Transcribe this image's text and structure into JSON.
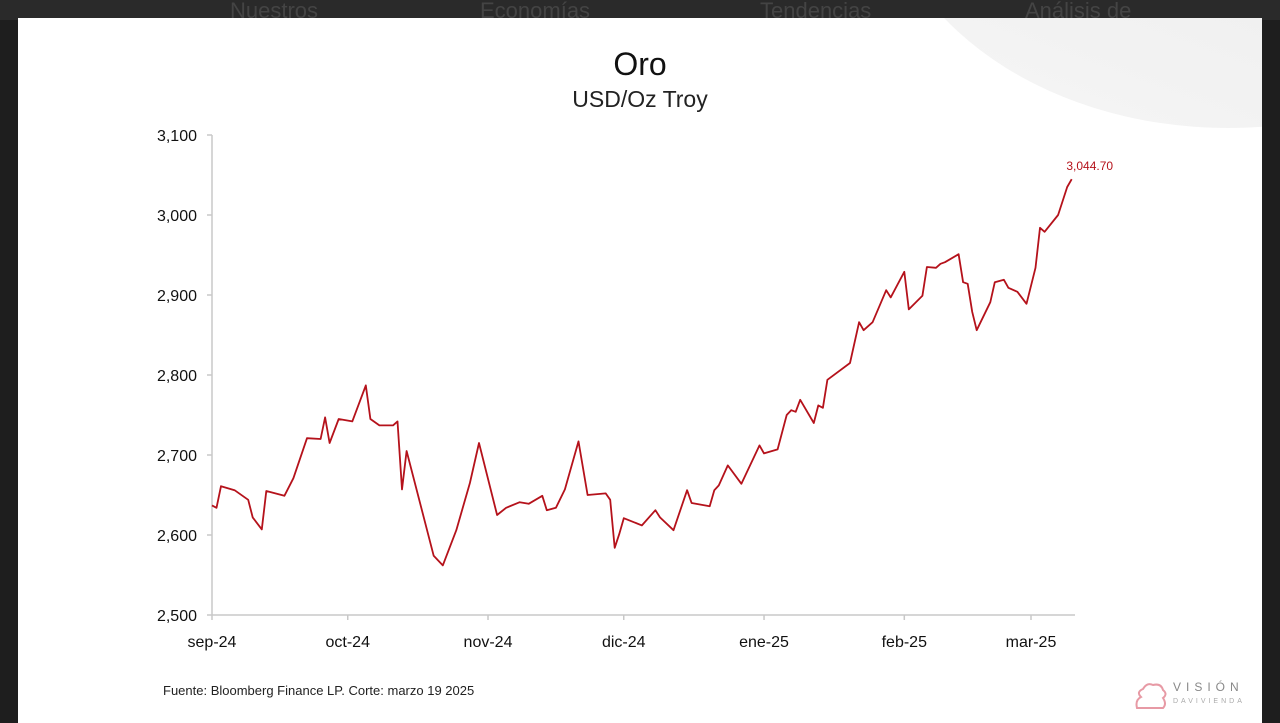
{
  "nav": {
    "items": [
      "Nuestros",
      "Economías",
      "Tendencias",
      "Análisis de"
    ]
  },
  "chart_data": {
    "type": "line",
    "title": "Oro",
    "subtitle": "USD/Oz Troy",
    "xlabel": "",
    "ylabel": "",
    "ylim": [
      2500,
      3100
    ],
    "yticks": [
      "2,500",
      "2,600",
      "2,700",
      "2,800",
      "2,900",
      "3,000",
      "3,100"
    ],
    "xticks": [
      {
        "date": "2024-09-01",
        "label": "sep-24"
      },
      {
        "date": "2024-10-01",
        "label": "oct-24"
      },
      {
        "date": "2024-11-01",
        "label": "nov-24"
      },
      {
        "date": "2024-12-01",
        "label": "dic-24"
      },
      {
        "date": "2025-01-01",
        "label": "ene-25"
      },
      {
        "date": "2025-02-01",
        "label": "feb-25"
      },
      {
        "date": "2025-03-01",
        "label": "mar-25"
      }
    ],
    "grid": false,
    "line_color": "#b5121b",
    "last_value_label": "3,044.70",
    "series": [
      {
        "points": [
          [
            "2024-09-01",
            2637
          ],
          [
            "2024-09-02",
            2634
          ],
          [
            "2024-09-03",
            2661
          ],
          [
            "2024-09-06",
            2656
          ],
          [
            "2024-09-09",
            2644
          ],
          [
            "2024-09-10",
            2622
          ],
          [
            "2024-09-12",
            2607
          ],
          [
            "2024-09-13",
            2655
          ],
          [
            "2024-09-17",
            2649
          ],
          [
            "2024-09-19",
            2671
          ],
          [
            "2024-09-22",
            2721
          ],
          [
            "2024-09-25",
            2720
          ],
          [
            "2024-09-26",
            2747
          ],
          [
            "2024-09-27",
            2715
          ],
          [
            "2024-09-29",
            2745
          ],
          [
            "2024-10-02",
            2742
          ],
          [
            "2024-10-04",
            2772
          ],
          [
            "2024-10-05",
            2787
          ],
          [
            "2024-10-06",
            2745
          ],
          [
            "2024-10-08",
            2737
          ],
          [
            "2024-10-11",
            2737
          ],
          [
            "2024-10-12",
            2742
          ],
          [
            "2024-10-13",
            2657
          ],
          [
            "2024-10-14",
            2705
          ],
          [
            "2024-10-20",
            2574
          ],
          [
            "2024-10-22",
            2562
          ],
          [
            "2024-10-25",
            2606
          ],
          [
            "2024-10-28",
            2665
          ],
          [
            "2024-10-30",
            2715
          ],
          [
            "2024-11-03",
            2625
          ],
          [
            "2024-11-05",
            2634
          ],
          [
            "2024-11-08",
            2641
          ],
          [
            "2024-11-10",
            2639
          ],
          [
            "2024-11-13",
            2649
          ],
          [
            "2024-11-14",
            2631
          ],
          [
            "2024-11-16",
            2634
          ],
          [
            "2024-11-18",
            2657
          ],
          [
            "2024-11-21",
            2717
          ],
          [
            "2024-11-23",
            2650
          ],
          [
            "2024-11-27",
            2652
          ],
          [
            "2024-11-28",
            2644
          ],
          [
            "2024-11-29",
            2584
          ],
          [
            "2024-11-30",
            2601
          ],
          [
            "2024-12-01",
            2621
          ],
          [
            "2024-12-05",
            2612
          ],
          [
            "2024-12-08",
            2631
          ],
          [
            "2024-12-09",
            2622
          ],
          [
            "2024-12-12",
            2606
          ],
          [
            "2024-12-15",
            2656
          ],
          [
            "2024-12-16",
            2640
          ],
          [
            "2024-12-20",
            2636
          ],
          [
            "2024-12-21",
            2656
          ],
          [
            "2024-12-22",
            2662
          ],
          [
            "2024-12-24",
            2687
          ],
          [
            "2024-12-27",
            2664
          ],
          [
            "2024-12-31",
            2712
          ],
          [
            "2025-01-01",
            2702
          ],
          [
            "2025-01-04",
            2707
          ],
          [
            "2025-01-06",
            2750
          ],
          [
            "2025-01-07",
            2756
          ],
          [
            "2025-01-08",
            2754
          ],
          [
            "2025-01-09",
            2769
          ],
          [
            "2025-01-12",
            2740
          ],
          [
            "2025-01-13",
            2762
          ],
          [
            "2025-01-14",
            2759
          ],
          [
            "2025-01-15",
            2794
          ],
          [
            "2025-01-20",
            2815
          ],
          [
            "2025-01-22",
            2866
          ],
          [
            "2025-01-23",
            2856
          ],
          [
            "2025-01-25",
            2866
          ],
          [
            "2025-01-28",
            2906
          ],
          [
            "2025-01-29",
            2897
          ],
          [
            "2025-02-01",
            2929
          ],
          [
            "2025-02-02",
            2882
          ],
          [
            "2025-02-05",
            2899
          ],
          [
            "2025-02-06",
            2935
          ],
          [
            "2025-02-08",
            2934
          ],
          [
            "2025-02-09",
            2939
          ],
          [
            "2025-02-10",
            2941
          ],
          [
            "2025-02-13",
            2951
          ],
          [
            "2025-02-14",
            2916
          ],
          [
            "2025-02-15",
            2914
          ],
          [
            "2025-02-16",
            2879
          ],
          [
            "2025-02-17",
            2856
          ],
          [
            "2025-02-20",
            2891
          ],
          [
            "2025-02-21",
            2916
          ],
          [
            "2025-02-23",
            2919
          ],
          [
            "2025-02-24",
            2909
          ],
          [
            "2025-02-26",
            2904
          ],
          [
            "2025-02-28",
            2889
          ],
          [
            "2025-03-02",
            2934
          ],
          [
            "2025-03-03",
            2984
          ],
          [
            "2025-03-04",
            2979
          ],
          [
            "2025-03-07",
            3000
          ],
          [
            "2025-03-09",
            3035
          ],
          [
            "2025-03-10",
            3044.7
          ]
        ]
      }
    ]
  },
  "footer": {
    "source": "Fuente:  Bloomberg Finance LP. Corte: marzo 19 2025"
  },
  "logo": {
    "text": "VISIÓN",
    "subtext": "DAVIVIENDA"
  }
}
